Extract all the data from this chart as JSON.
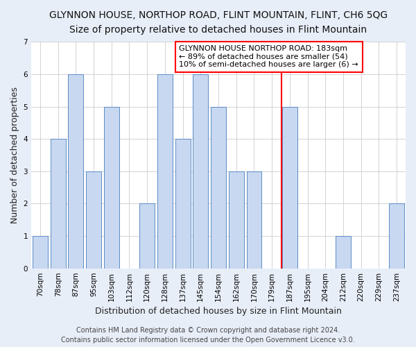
{
  "title": "GLYNNON HOUSE, NORTHOP ROAD, FLINT MOUNTAIN, FLINT, CH6 5QG",
  "subtitle": "Size of property relative to detached houses in Flint Mountain",
  "xlabel": "Distribution of detached houses by size in Flint Mountain",
  "ylabel": "Number of detached properties",
  "bin_labels": [
    "70sqm",
    "78sqm",
    "87sqm",
    "95sqm",
    "103sqm",
    "112sqm",
    "120sqm",
    "128sqm",
    "137sqm",
    "145sqm",
    "154sqm",
    "162sqm",
    "170sqm",
    "179sqm",
    "187sqm",
    "195sqm",
    "204sqm",
    "212sqm",
    "220sqm",
    "229sqm",
    "237sqm"
  ],
  "bar_heights": [
    1,
    4,
    6,
    3,
    5,
    0,
    2,
    6,
    4,
    6,
    5,
    3,
    3,
    0,
    5,
    0,
    0,
    1,
    0,
    0,
    2
  ],
  "bar_color": "#c8d8f0",
  "bar_edge_color": "#5a8ac6",
  "red_line_index": 13.55,
  "annotation_lines": [
    "GLYNNON HOUSE NORTHOP ROAD: 183sqm",
    "← 89% of detached houses are smaller (54)",
    "10% of semi-detached houses are larger (6) →"
  ],
  "ylim": [
    0,
    7
  ],
  "yticks": [
    0,
    1,
    2,
    3,
    4,
    5,
    6,
    7
  ],
  "footer_line1": "Contains HM Land Registry data © Crown copyright and database right 2024.",
  "footer_line2": "Contains public sector information licensed under the Open Government Licence v3.0.",
  "bg_color": "#e8eef8",
  "plot_bg": "#ffffff",
  "title_fontsize": 10,
  "subtitle_fontsize": 9,
  "axis_label_fontsize": 9,
  "tick_fontsize": 7.5,
  "annotation_fontsize": 8,
  "footer_fontsize": 7
}
